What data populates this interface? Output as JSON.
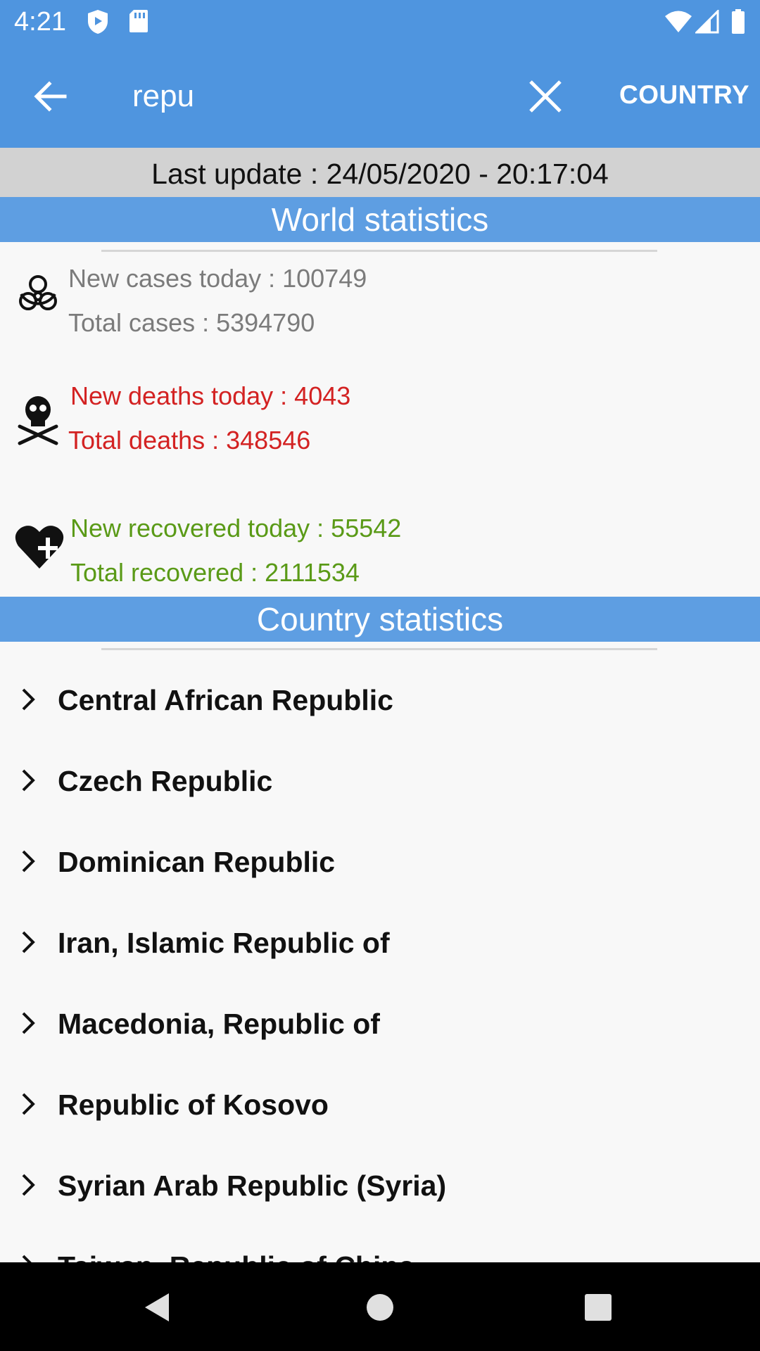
{
  "status_bar": {
    "time": "4:21",
    "icons": [
      "shield-icon",
      "sd-card-icon",
      "wifi-icon",
      "signal-icon",
      "battery-icon"
    ]
  },
  "app_bar": {
    "back_icon": "arrow-left-icon",
    "search_value": "repu",
    "clear_icon": "close-icon",
    "action_label": "COUNTRY"
  },
  "update_text": "Last update : 24/05/2020 - 20:17:04",
  "world": {
    "title": "World statistics",
    "cases": {
      "icon": "biohazard-icon",
      "new_text": "New cases today : 100749",
      "total_text": "Total cases : 5394790"
    },
    "deaths": {
      "icon": "skull-crossbones-icon",
      "new_text": "New deaths today : 4043",
      "total_text": "Total deaths : 348546"
    },
    "recovered": {
      "icon": "heart-plus-icon",
      "new_text": "New recovered today : 55542",
      "total_text": "Total recovered : 2111534"
    }
  },
  "country_section": {
    "title": "Country statistics",
    "items": [
      "Central African Republic",
      "Czech Republic",
      "Dominican Republic",
      "Iran, Islamic Republic of",
      "Macedonia, Republic of",
      "Republic of Kosovo",
      "Syrian Arab Republic (Syria)",
      "Taiwan, Republic of China"
    ]
  },
  "colors": {
    "primary": "#4f95df",
    "section_header": "#5e9ee2",
    "cases_text": "#7b7b7b",
    "deaths_text": "#d32222",
    "recovered_text": "#5a9a17"
  },
  "nav_bar": {
    "icons": [
      "back-triangle-icon",
      "home-circle-icon",
      "recents-square-icon"
    ]
  }
}
